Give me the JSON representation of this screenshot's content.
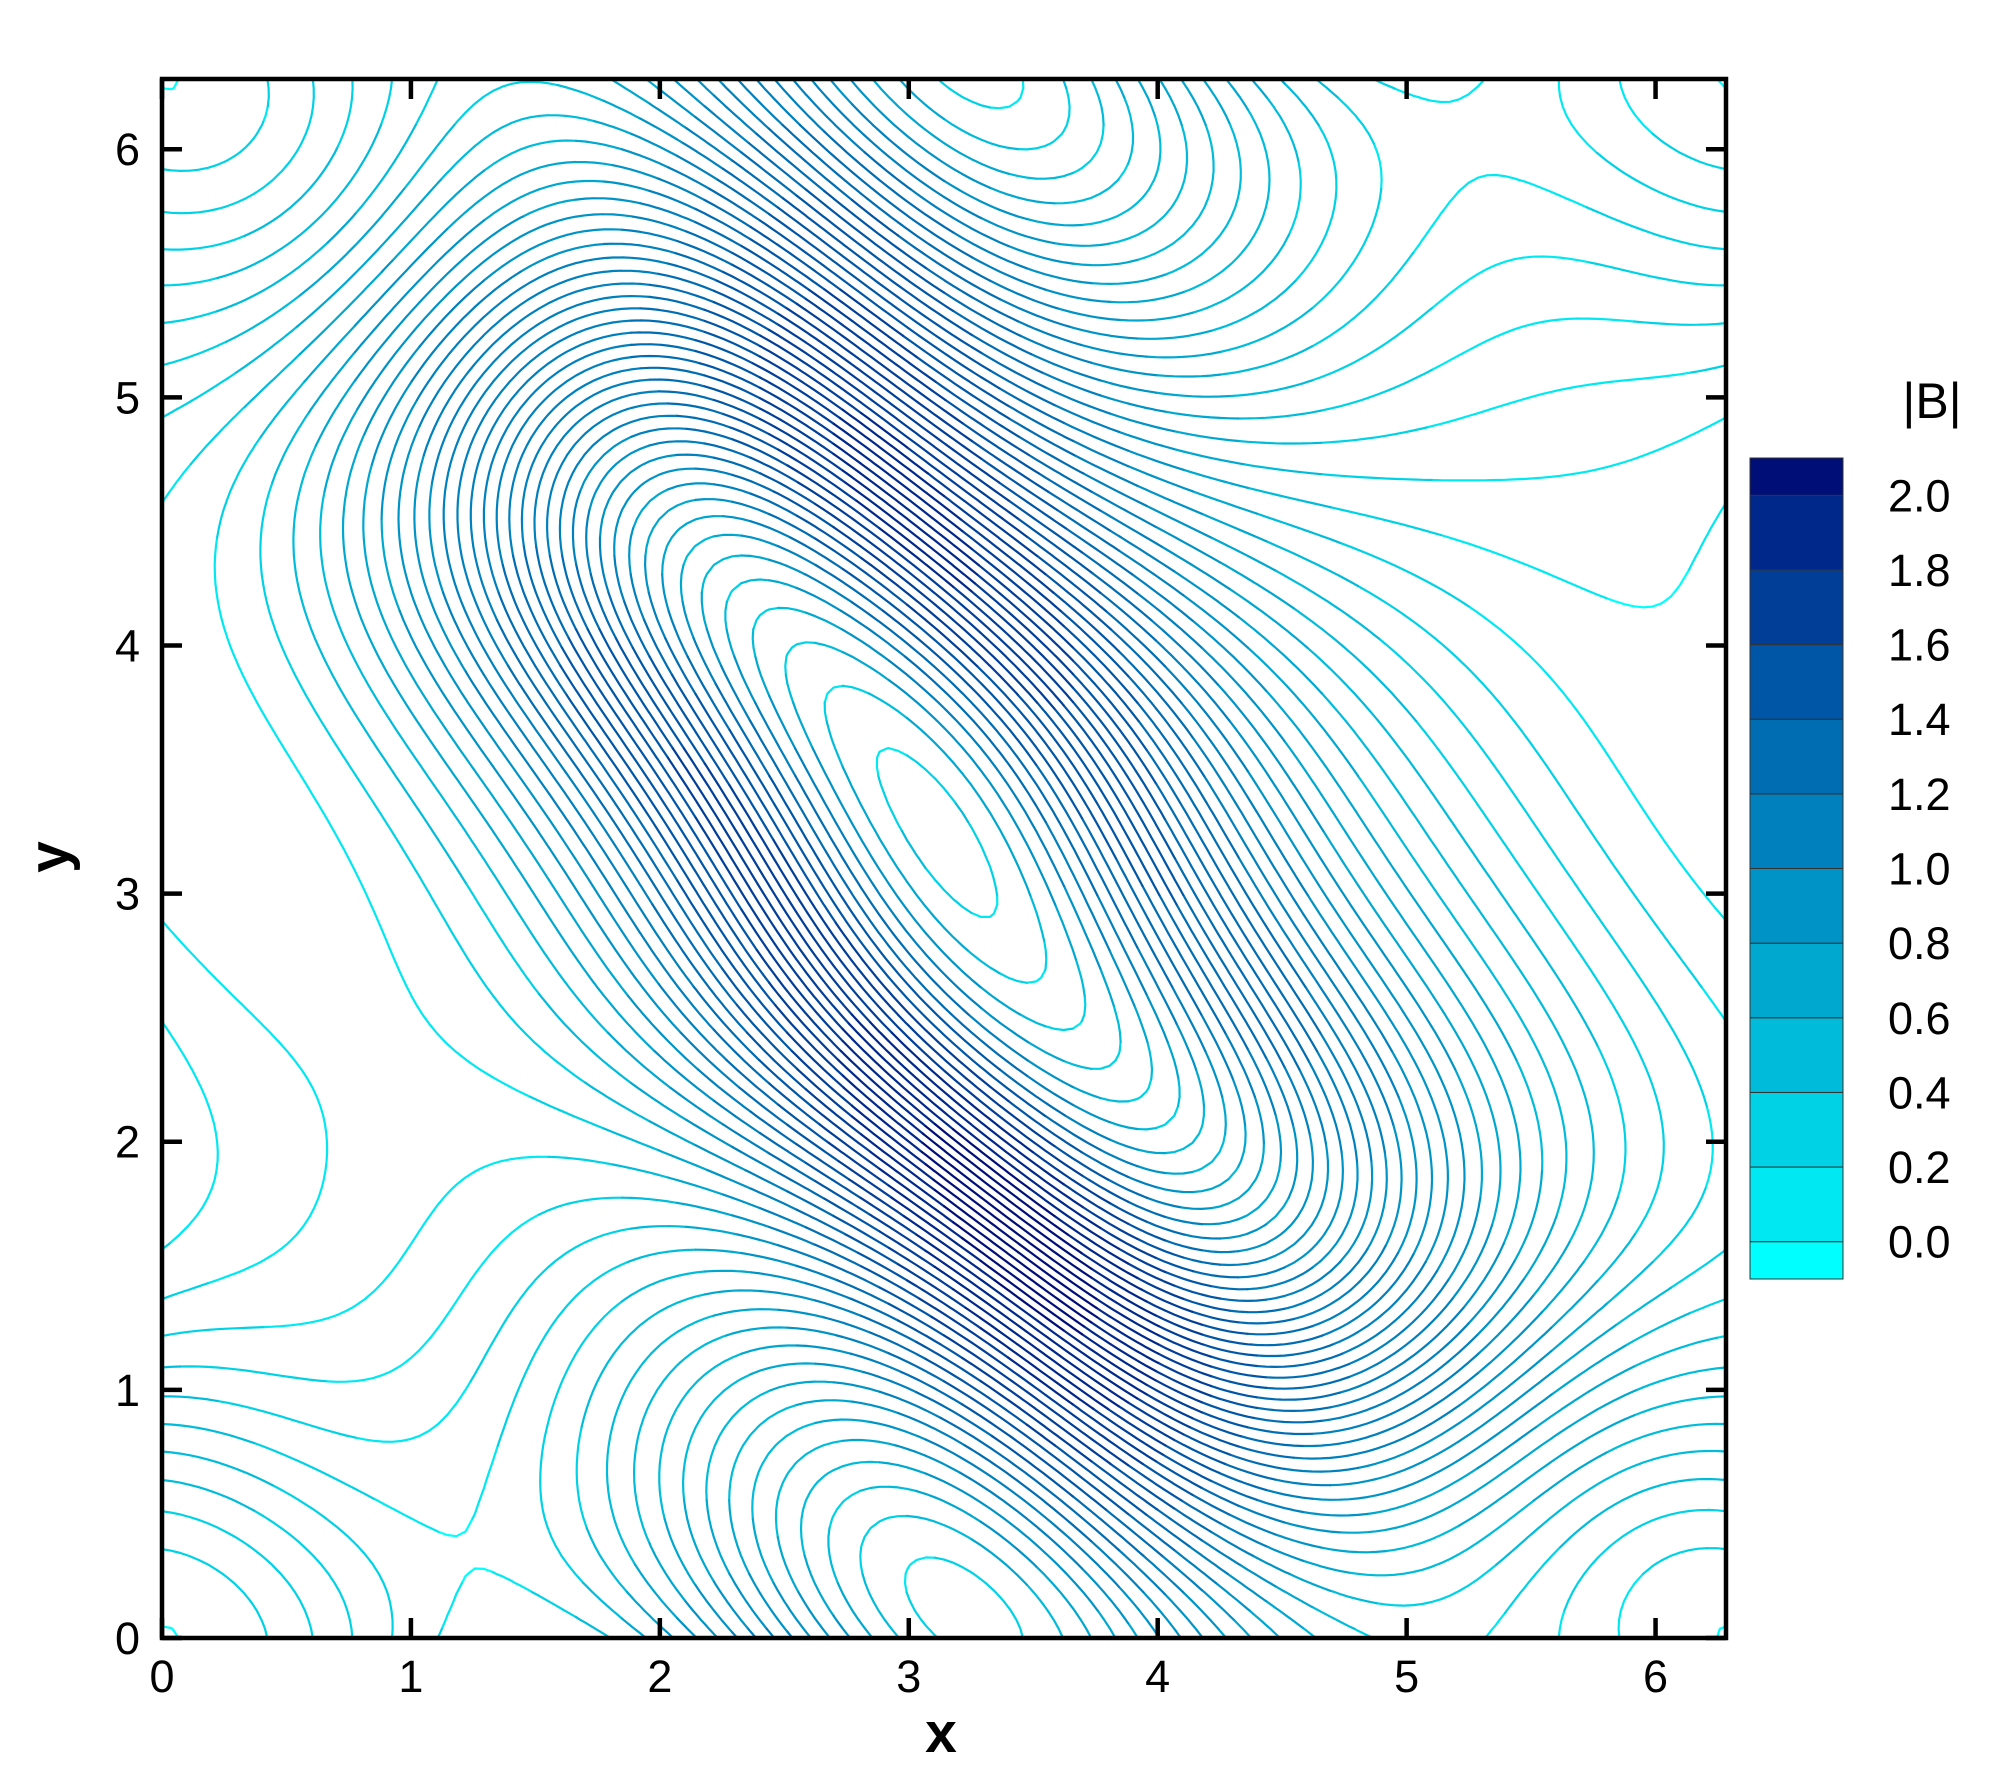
{
  "chart_data": {
    "type": "streamline",
    "xlabel": "x",
    "ylabel": "y",
    "xlim": [
      0,
      6.283
    ],
    "ylim": [
      0,
      6.283
    ],
    "xticks": [
      0,
      1,
      2,
      3,
      4,
      5,
      6
    ],
    "yticks": [
      0,
      1,
      2,
      3,
      4,
      5,
      6
    ],
    "colorbar": {
      "title": "|B|",
      "lim": [
        -0.1,
        2.1
      ],
      "ticks": [
        {
          "value": 0,
          "label": "0.0"
        },
        0.2,
        0.4,
        0.6,
        0.8,
        {
          "value": 1,
          "label": "1.0"
        },
        1.2,
        1.4,
        1.6,
        1.8,
        {
          "value": 2,
          "label": "2.0"
        }
      ],
      "colors": [
        "#00ffff",
        "#00e8f2",
        "#00d2e6",
        "#00bcda",
        "#00a8d0",
        "#0094c6",
        "#0080bc",
        "#006cb2",
        "#0056a6",
        "#003e98",
        "#00288a",
        "#000e78"
      ]
    }
  }
}
